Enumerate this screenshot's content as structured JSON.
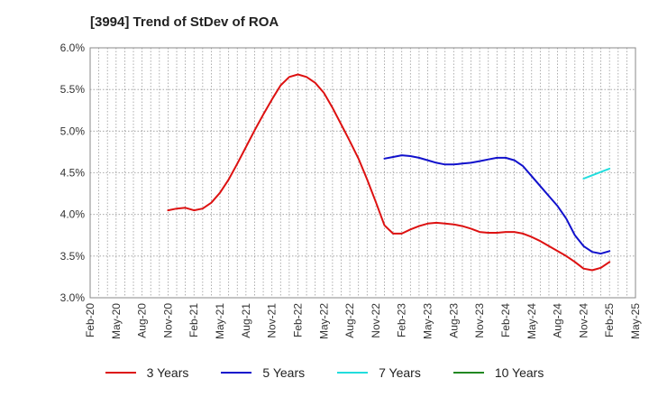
{
  "chart_data": {
    "type": "line",
    "title": "[3994]  Trend of StDev of ROA",
    "xlabel": "",
    "ylabel": "",
    "x_ticks": [
      "Feb-20",
      "May-20",
      "Aug-20",
      "Nov-20",
      "Feb-21",
      "May-21",
      "Aug-21",
      "Nov-21",
      "Feb-22",
      "May-22",
      "Aug-22",
      "Nov-22",
      "Feb-23",
      "May-23",
      "Aug-23",
      "Nov-23",
      "Feb-24",
      "May-24",
      "Aug-24",
      "Nov-24",
      "Feb-25",
      "May-25"
    ],
    "y_ticks": [
      "3.0%",
      "3.5%",
      "4.0%",
      "4.5%",
      "5.0%",
      "5.5%",
      "6.0%"
    ],
    "ylim": [
      3.0,
      6.0
    ],
    "grid": true,
    "legend_position": "bottom",
    "series": [
      {
        "name": "3 Years",
        "color": "#dd1111",
        "values": [
          null,
          null,
          null,
          null,
          null,
          null,
          null,
          null,
          null,
          4.05,
          4.07,
          4.08,
          4.05,
          4.07,
          4.14,
          4.26,
          4.42,
          4.61,
          4.81,
          5.01,
          5.2,
          5.38,
          5.55,
          5.65,
          5.68,
          5.65,
          5.58,
          5.46,
          5.28,
          5.08,
          4.88,
          4.67,
          4.42,
          4.15,
          3.87,
          3.77,
          3.77,
          3.82,
          3.86,
          3.89,
          3.9,
          3.89,
          3.88,
          3.86,
          3.83,
          3.79,
          3.78,
          3.78,
          3.79,
          3.79,
          3.77,
          3.73,
          3.68,
          3.62,
          3.56,
          3.5,
          3.43,
          3.35,
          3.33,
          3.36,
          3.43
        ]
      },
      {
        "name": "5 Years",
        "color": "#1111cc",
        "values": [
          null,
          null,
          null,
          null,
          null,
          null,
          null,
          null,
          null,
          null,
          null,
          null,
          null,
          null,
          null,
          null,
          null,
          null,
          null,
          null,
          null,
          null,
          null,
          null,
          null,
          null,
          null,
          null,
          null,
          null,
          null,
          null,
          null,
          null,
          4.67,
          4.69,
          4.71,
          4.7,
          4.68,
          4.65,
          4.62,
          4.6,
          4.6,
          4.61,
          4.62,
          4.64,
          4.66,
          4.68,
          4.68,
          4.65,
          4.58,
          4.46,
          4.34,
          4.22,
          4.1,
          3.95,
          3.75,
          3.62,
          3.55,
          3.53,
          3.56
        ]
      },
      {
        "name": "7 Years",
        "color": "#22dddd",
        "values": [
          null,
          null,
          null,
          null,
          null,
          null,
          null,
          null,
          null,
          null,
          null,
          null,
          null,
          null,
          null,
          null,
          null,
          null,
          null,
          null,
          null,
          null,
          null,
          null,
          null,
          null,
          null,
          null,
          null,
          null,
          null,
          null,
          null,
          null,
          null,
          null,
          null,
          null,
          null,
          null,
          null,
          null,
          null,
          null,
          null,
          null,
          null,
          null,
          null,
          null,
          null,
          null,
          null,
          null,
          null,
          null,
          null,
          4.43,
          4.47,
          4.51,
          4.55
        ]
      },
      {
        "name": "10 Years",
        "color": "#228822",
        "values": []
      }
    ]
  }
}
